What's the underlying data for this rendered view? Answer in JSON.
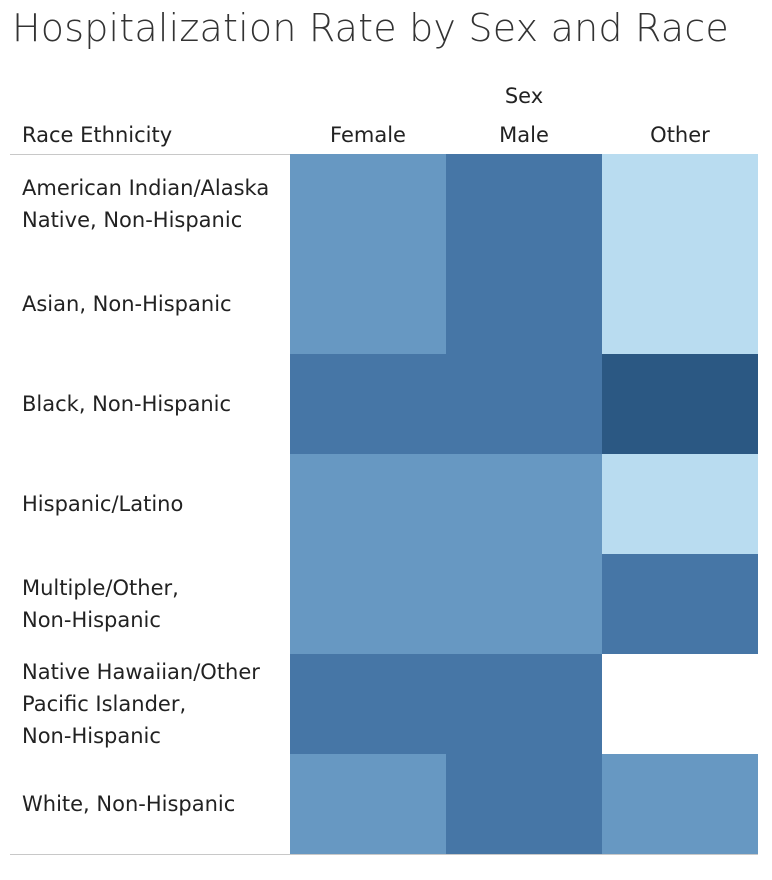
{
  "title": "Hospitalization Rate by Sex and Race",
  "colors": {
    "level_1": "#b9dcf0",
    "level_2": "#6798c2",
    "level_3": "#4676a6",
    "level_4": "#2b5883",
    "rule": "#c8c8c8"
  },
  "chart_data": {
    "type": "heatmap",
    "title": "Hospitalization Rate by Sex and Race",
    "column_dimension": "Sex",
    "row_dimension": "Race Ethnicity",
    "columns": [
      "Female",
      "Male",
      "Other"
    ],
    "rows": [
      "American Indian/Alaska\nNative, Non-Hispanic",
      "Asian, Non-Hispanic",
      "Black, Non-Hispanic",
      "Hispanic/Latino",
      "Multiple/Other,\nNon-Hispanic",
      "Native Hawaiian/Other\nPacific Islander,\nNon-Hispanic",
      "White, Non-Hispanic"
    ],
    "color_scale": "sequential blue (light = lower rate, dark = higher rate)",
    "values": [
      [
        2,
        3,
        1
      ],
      [
        2,
        3,
        1
      ],
      [
        3,
        3,
        4
      ],
      [
        2,
        2,
        1
      ],
      [
        2,
        2,
        3
      ],
      [
        3,
        3,
        null
      ],
      [
        2,
        3,
        2
      ]
    ]
  }
}
